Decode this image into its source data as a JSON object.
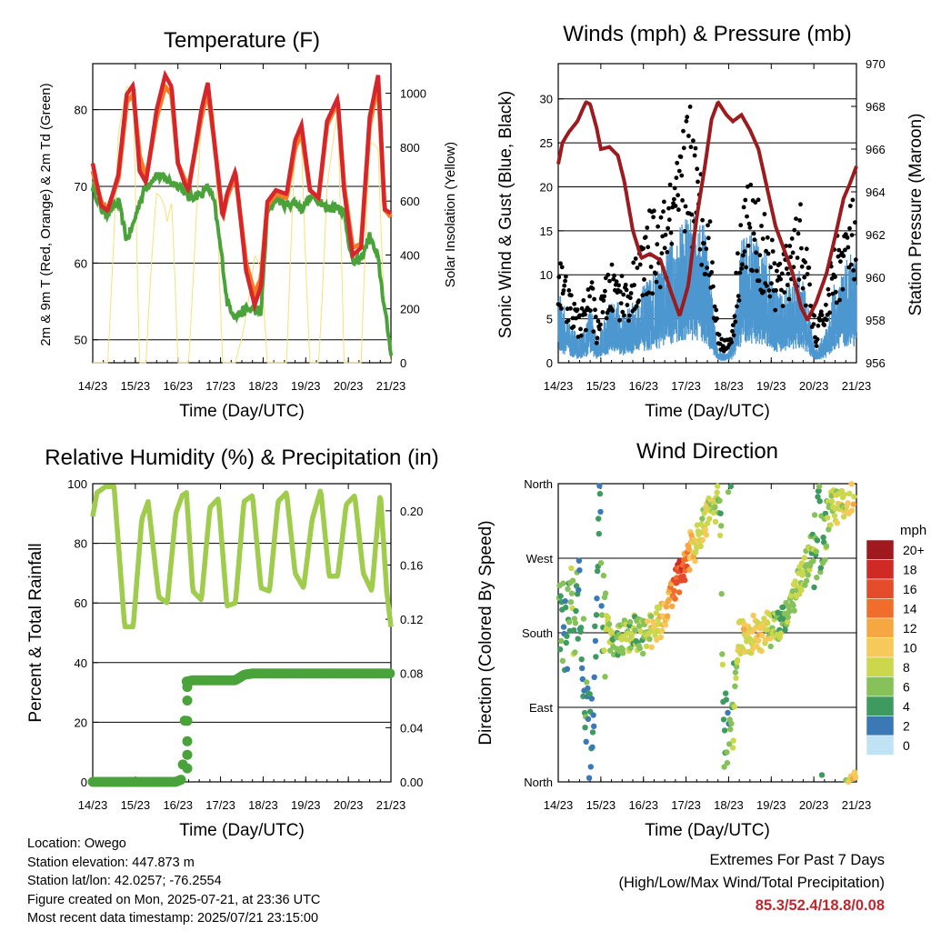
{
  "time_ticks": [
    "14/23",
    "15/23",
    "16/23",
    "17/23",
    "18/23",
    "19/23",
    "20/23",
    "21/23"
  ],
  "colors": {
    "temp2m": "#d7262b",
    "temp9m": "#f47c25",
    "dew": "#4aa33a",
    "solar": "#f5e278",
    "wind": "#4d97d1",
    "gust": "#000000",
    "pressure": "#9b1b1e",
    "rh": "#9fcc4c",
    "rain": "#4aa33a",
    "highlight": "#c0272d"
  },
  "panels": {
    "temperature": {
      "title": "Temperature (F)",
      "xlabel": "Time (Day/UTC)",
      "ylabel": "2m & 9m T (Red, Orange) & 2m Td (Green)",
      "ylabel_right": "Solar Insolation (Yellow)"
    },
    "winds": {
      "title": "Winds (mph) & Pressure (mb)",
      "xlabel": "Time (Day/UTC)",
      "ylabel": "Sonic Wind & Gust (Blue, Black)",
      "ylabel_right": "Station Pressure (Maroon)"
    },
    "humidity": {
      "title": "Relative Humidity (%) & Precipitation (in)",
      "xlabel": "Time (Day/UTC)",
      "ylabel": "Percent & Total Rainfall"
    },
    "direction": {
      "title": "Wind Direction",
      "xlabel": "Time (Day/UTC)",
      "ylabel": "Direction (Colored By Speed)",
      "legend_title": "mph"
    }
  },
  "chart_data": [
    {
      "type": "line",
      "title": "Temperature (F)",
      "xlabel": "Time (Day/UTC)",
      "ylabel": "2m & 9m T (Red, Orange) & 2m Td (Green)",
      "ylabel_right": "Solar Insolation (Yellow)",
      "x_ticks": [
        "14/23",
        "15/23",
        "16/23",
        "17/23",
        "18/23",
        "19/23",
        "20/23",
        "21/23"
      ],
      "ylim": [
        47,
        86
      ],
      "y_ticks": [
        50,
        60,
        70,
        80
      ],
      "ylim_right": [
        0,
        1110
      ],
      "y_ticks_right": [
        0,
        200,
        400,
        600,
        800,
        1000
      ],
      "x_days": [
        0,
        0.2,
        0.35,
        0.6,
        0.8,
        0.95,
        1.1,
        1.25,
        1.5,
        1.7,
        1.85,
        2.0,
        2.15,
        2.25,
        2.55,
        2.7,
        2.85,
        3.05,
        3.15,
        3.35,
        3.6,
        3.8,
        3.95,
        4.1,
        4.3,
        4.55,
        4.75,
        4.9,
        5.1,
        5.3,
        5.5,
        5.75,
        5.9,
        6.1,
        6.3,
        6.5,
        6.7,
        6.85,
        7.0
      ],
      "series": [
        {
          "name": "2m T",
          "values": [
            73,
            67.5,
            66.8,
            71.5,
            82,
            83.2,
            72,
            70.5,
            80,
            84.5,
            83,
            73,
            70.5,
            69.5,
            80,
            83.5,
            76,
            66,
            69,
            72,
            59,
            54.5,
            57,
            68,
            69.5,
            69,
            76,
            78,
            69.5,
            68.5,
            78.5,
            81.5,
            69.5,
            61,
            62,
            79,
            84.5,
            67,
            66.5
          ]
        },
        {
          "name": "9m T",
          "values": [
            72,
            68,
            67,
            71,
            81,
            82,
            74,
            71,
            79,
            83,
            82,
            73,
            71,
            70,
            79,
            82.5,
            76,
            66,
            68.5,
            71.5,
            60,
            56,
            58,
            67.5,
            69,
            68.5,
            75,
            77,
            69.5,
            68.5,
            78,
            81,
            70,
            62,
            62.5,
            78,
            83.5,
            67,
            66
          ]
        },
        {
          "name": "2m Td",
          "values": [
            70,
            67,
            66.5,
            68,
            63,
            65,
            68,
            70,
            71.5,
            71,
            70.5,
            70.2,
            69.5,
            68.5,
            69,
            70,
            68,
            60,
            55,
            53,
            54,
            54,
            53.5,
            66.5,
            68.5,
            67.5,
            68,
            67,
            68.5,
            68.5,
            67,
            67.5,
            66.5,
            60,
            60.5,
            63.5,
            60.5,
            54,
            48.5
          ]
        },
        {
          "name": "Solar Insolation",
          "axis": "right",
          "values": [
            0,
            0,
            0,
            900,
            1030,
            1000,
            0,
            0,
            880,
            1060,
            1000,
            0,
            0,
            0,
            920,
            1050,
            950,
            0,
            0,
            0,
            300,
            520,
            400,
            0,
            0,
            0,
            900,
            1040,
            0,
            0,
            900,
            1050,
            0,
            0,
            0,
            920,
            1060,
            300,
            0
          ]
        }
      ]
    },
    {
      "type": "line",
      "title": "Winds (mph) & Pressure (mb)",
      "xlabel": "Time (Day/UTC)",
      "ylabel": "Sonic Wind & Gust (Blue, Black)",
      "ylabel_right": "Station Pressure (Maroon)",
      "x_ticks": [
        "14/23",
        "15/23",
        "16/23",
        "17/23",
        "18/23",
        "19/23",
        "20/23",
        "21/23"
      ],
      "ylim": [
        0,
        34
      ],
      "y_ticks": [
        0,
        5,
        10,
        15,
        20,
        25,
        30
      ],
      "ylim_right": [
        956,
        970
      ],
      "y_ticks_right": [
        956,
        958,
        960,
        962,
        964,
        966,
        968,
        970
      ],
      "x_days": [
        0,
        0.1,
        0.25,
        0.45,
        0.65,
        0.75,
        0.9,
        1.0,
        1.2,
        1.4,
        1.55,
        1.75,
        1.95,
        2.15,
        2.4,
        2.65,
        2.85,
        3.05,
        3.25,
        3.45,
        3.6,
        3.75,
        3.95,
        4.1,
        4.3,
        4.5,
        4.7,
        4.9,
        5.1,
        5.3,
        5.5,
        5.7,
        5.85,
        6.05,
        6.3,
        6.5,
        6.7,
        6.85,
        7.0
      ],
      "series": [
        {
          "name": "Sonic Wind",
          "values": [
            7,
            5,
            4,
            2,
            3,
            5,
            2,
            3,
            5,
            5,
            4,
            5,
            6,
            7,
            8,
            10,
            11,
            13,
            12,
            11,
            6,
            1,
            1,
            2,
            10,
            11,
            10,
            9,
            6,
            6,
            7,
            8,
            5,
            1,
            3,
            7,
            8,
            9,
            9
          ]
        },
        {
          "name": "Gust",
          "values": [
            11,
            9,
            7,
            5,
            6,
            9,
            4,
            6,
            9,
            9,
            8,
            9,
            11,
            14,
            14,
            17,
            19,
            27,
            19,
            18,
            12,
            3,
            2,
            4,
            16,
            17,
            15,
            13,
            10,
            10,
            14,
            15,
            10,
            3,
            7,
            12,
            13,
            15,
            15
          ]
        },
        {
          "name": "Station Pressure",
          "axis": "right",
          "values": [
            965.3,
            966.3,
            966.8,
            967.3,
            968.2,
            968.1,
            967.0,
            966.0,
            966.1,
            965.7,
            964.5,
            962.2,
            960.9,
            961.1,
            960.8,
            959.3,
            958.2,
            959.6,
            962.8,
            965.3,
            967.4,
            968.2,
            967.6,
            967.3,
            967.6,
            966.9,
            966.0,
            964.2,
            962.4,
            961.3,
            960.2,
            958.6,
            958.0,
            958.8,
            960.2,
            961.9,
            963.7,
            964.4,
            965.2
          ]
        }
      ]
    },
    {
      "type": "line",
      "title": "Relative Humidity (%) & Precipitation (in)",
      "xlabel": "Time (Day/UTC)",
      "ylabel": "Percent & Total Rainfall",
      "x_ticks": [
        "14/23",
        "15/23",
        "16/23",
        "17/23",
        "18/23",
        "19/23",
        "20/23",
        "21/23"
      ],
      "ylim": [
        0,
        100
      ],
      "y_ticks": [
        0,
        20,
        40,
        60,
        80,
        100
      ],
      "ylim_right": [
        0,
        0.22
      ],
      "y_ticks_right": [
        0.0,
        0.04,
        0.08,
        0.12,
        0.16,
        0.2
      ],
      "x_days": [
        0,
        0.1,
        0.3,
        0.5,
        0.75,
        0.95,
        1.15,
        1.3,
        1.55,
        1.75,
        1.95,
        2.1,
        2.2,
        2.35,
        2.55,
        2.75,
        2.95,
        3.15,
        3.35,
        3.55,
        3.75,
        3.95,
        4.15,
        4.35,
        4.55,
        4.75,
        4.95,
        5.15,
        5.35,
        5.55,
        5.75,
        5.95,
        6.15,
        6.35,
        6.55,
        6.75,
        6.9,
        7.0
      ],
      "series": [
        {
          "name": "Relative Humidity",
          "values": [
            89,
            97,
            99,
            99,
            52,
            52,
            88,
            94,
            62,
            60,
            90,
            96,
            97,
            64,
            61,
            92,
            95,
            59,
            60,
            94,
            96,
            65,
            64,
            94,
            97,
            70,
            65,
            88,
            98,
            69,
            69,
            93,
            96,
            70,
            64,
            97,
            64,
            52
          ]
        },
        {
          "name": "Total Rainfall",
          "axis": "right",
          "values": [
            0,
            0,
            0,
            0,
            0,
            0,
            0,
            0,
            0,
            0,
            0,
            0.002,
            0.074,
            0.075,
            0.075,
            0.075,
            0.075,
            0.075,
            0.075,
            0.079,
            0.08,
            0.08,
            0.08,
            0.08,
            0.08,
            0.08,
            0.08,
            0.08,
            0.08,
            0.08,
            0.08,
            0.08,
            0.08,
            0.08,
            0.08,
            0.08,
            0.08,
            0.08
          ]
        }
      ]
    },
    {
      "type": "scatter",
      "title": "Wind Direction",
      "xlabel": "Time (Day/UTC)",
      "ylabel": "Direction (Colored By Speed)",
      "x_ticks": [
        "14/23",
        "15/23",
        "16/23",
        "17/23",
        "18/23",
        "19/23",
        "20/23",
        "21/23"
      ],
      "y_ticks": [
        "North",
        "East",
        "South",
        "West",
        "North"
      ],
      "ylim": [
        0,
        360
      ],
      "legend": {
        "title": "mph",
        "labels": [
          "20+",
          "18",
          "16",
          "14",
          "12",
          "10",
          "8",
          "6",
          "4",
          "2",
          "0"
        ],
        "colors": [
          "#a1191e",
          "#cf2a26",
          "#e34b2b",
          "#f16d2b",
          "#f6a742",
          "#f7c85a",
          "#cbd84e",
          "#86c15a",
          "#3e9a5f",
          "#3a79b6",
          "#bfe3f5"
        ]
      },
      "x_days": [
        0.05,
        0.2,
        0.3,
        0.5,
        0.7,
        0.8,
        0.95,
        1.05,
        1.2,
        1.4,
        1.6,
        1.8,
        2.0,
        2.2,
        2.5,
        2.65,
        2.8,
        2.95,
        3.1,
        3.2,
        3.35,
        3.5,
        3.65,
        3.8,
        3.9,
        4.05,
        4.25,
        4.45,
        4.6,
        4.8,
        5.0,
        5.2,
        5.35,
        5.5,
        5.65,
        5.8,
        6.0,
        6.2,
        6.4,
        6.6,
        6.8,
        6.95
      ],
      "directions": [
        180,
        190,
        200,
        220,
        70,
        40,
        330,
        190,
        180,
        170,
        175,
        180,
        175,
        185,
        200,
        225,
        240,
        260,
        280,
        280,
        300,
        320,
        330,
        340,
        60,
        40,
        175,
        175,
        180,
        180,
        185,
        195,
        205,
        215,
        240,
        260,
        285,
        310,
        330,
        335,
        345,
        350
      ],
      "speeds": [
        4,
        3,
        6,
        3,
        4,
        3,
        3,
        5,
        7,
        6,
        7,
        6,
        7,
        8,
        10,
        13,
        16,
        15,
        12,
        9,
        8,
        8,
        7,
        6,
        5,
        4,
        9,
        10,
        9,
        10,
        7,
        6,
        6,
        7,
        7,
        7,
        6,
        5,
        7,
        8,
        9,
        10
      ]
    }
  ],
  "footer": {
    "location": "Location: Owego",
    "elevation": "Station elevation: 447.873 m",
    "latlon": "Station lat/lon: 42.0257; -76.2554",
    "created": "Figure created on Mon, 2025-07-21, at 23:36 UTC",
    "recent": "Most recent data timestamp: 2025/07/21 23:15:00"
  },
  "extremes": {
    "title": "Extremes For Past 7 Days",
    "subtitle": "(High/Low/Max Wind/Total Precipitation)",
    "values": "85.3/52.4/18.8/0.08"
  }
}
